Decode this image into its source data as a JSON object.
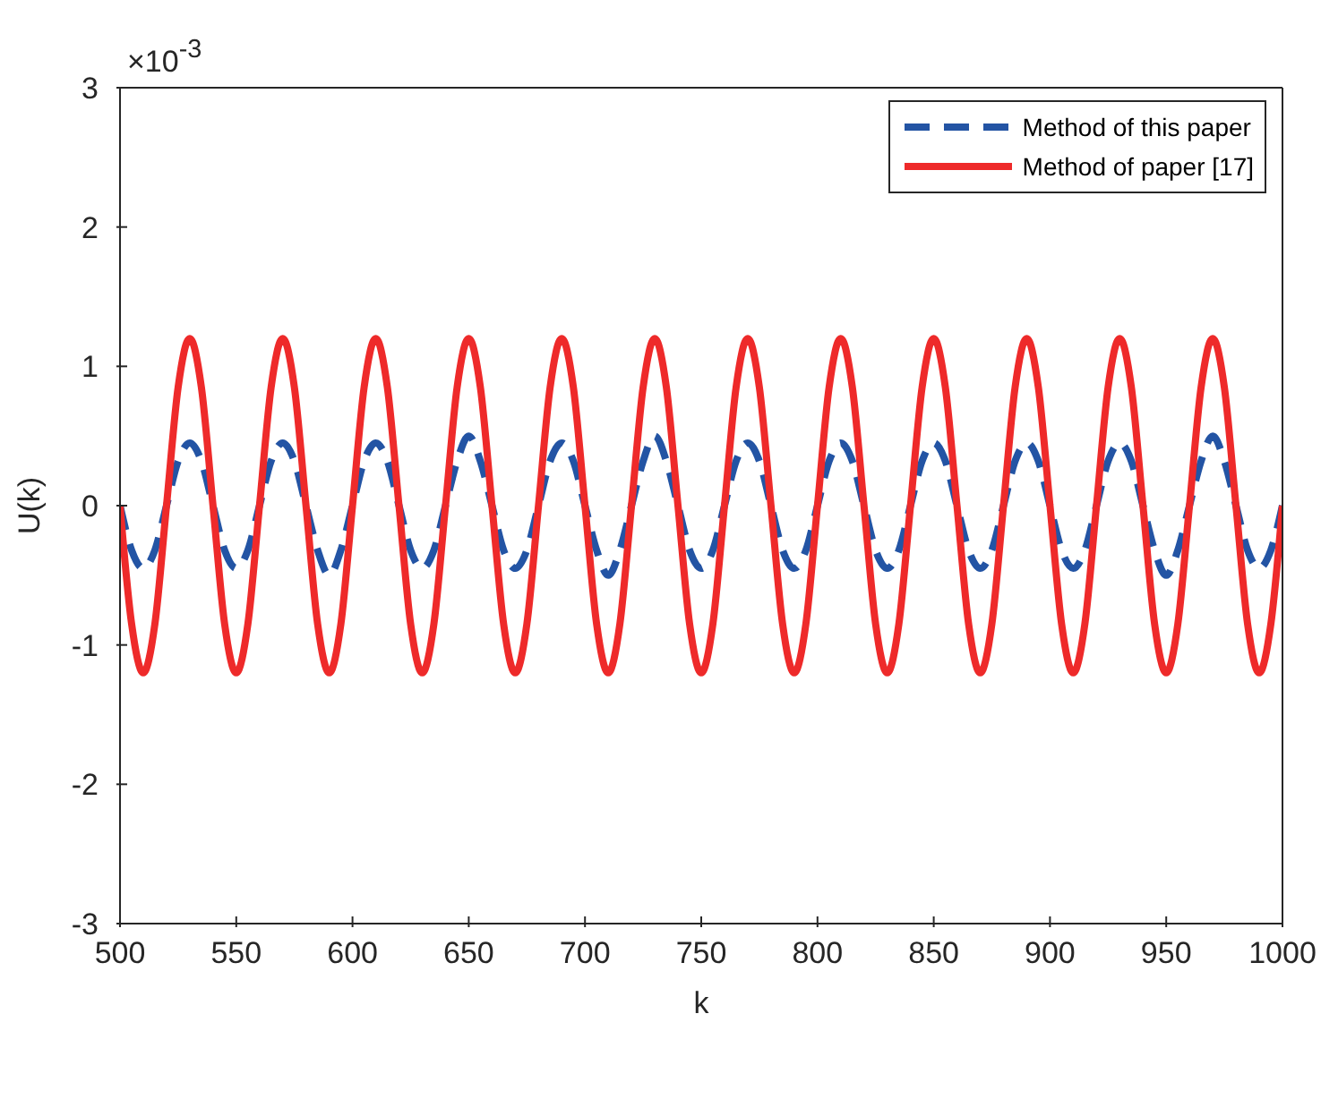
{
  "chart_data": {
    "type": "line",
    "xlabel": "k",
    "ylabel": "U(k)",
    "annotations": [
      "×10$^{-3}$"
    ],
    "x": [
      500,
      505,
      510,
      515,
      520,
      525,
      530,
      535,
      540,
      545,
      550,
      555,
      560,
      565,
      570,
      575,
      580,
      585,
      590,
      595,
      600,
      605,
      610,
      615,
      620,
      625,
      630,
      635,
      640,
      645,
      650,
      655,
      660,
      665,
      670,
      675,
      680,
      685,
      690,
      695,
      700,
      705,
      710,
      715,
      720,
      725,
      730,
      735,
      740,
      745,
      750,
      755,
      760,
      765,
      770,
      775,
      780,
      785,
      790,
      795,
      800,
      805,
      810,
      815,
      820,
      825,
      830,
      835,
      840,
      845,
      850,
      855,
      860,
      865,
      870,
      875,
      880,
      885,
      890,
      895,
      900,
      905,
      910,
      915,
      920,
      925,
      930,
      935,
      940,
      945,
      950,
      955,
      960,
      965,
      970,
      975,
      980,
      985,
      990,
      995,
      1000
    ],
    "series": [
      {
        "name": "Method of this paper",
        "color": "#2354a4",
        "line_style": "dashed",
        "values": [
          0,
          -0.32,
          -0.45,
          -0.32,
          0,
          0.32,
          0.45,
          0.32,
          0,
          -0.32,
          -0.45,
          -0.32,
          0,
          0.32,
          0.45,
          0.32,
          0,
          -0.32,
          -0.5,
          -0.32,
          0,
          0.32,
          0.45,
          0.32,
          0,
          -0.32,
          -0.45,
          -0.32,
          0,
          0.32,
          0.5,
          0.32,
          0,
          -0.32,
          -0.45,
          -0.32,
          0,
          0.32,
          0.45,
          0.32,
          0,
          -0.32,
          -0.5,
          -0.32,
          0,
          0.32,
          0.5,
          0.32,
          0,
          -0.32,
          -0.45,
          -0.32,
          0,
          0.32,
          0.45,
          0.32,
          0,
          -0.32,
          -0.45,
          -0.32,
          0,
          0.32,
          0.45,
          0.32,
          0,
          -0.32,
          -0.45,
          -0.32,
          0,
          0.32,
          0.45,
          0.32,
          0,
          -0.32,
          -0.45,
          -0.32,
          0,
          0.32,
          0.45,
          0.32,
          0,
          -0.32,
          -0.45,
          -0.32,
          0,
          0.32,
          0.45,
          0.32,
          0,
          -0.32,
          -0.5,
          -0.32,
          0,
          0.32,
          0.5,
          0.32,
          0,
          -0.32,
          -0.45,
          -0.32,
          0
        ]
      },
      {
        "name": "Method of paper [17]",
        "color": "#ee2a2a",
        "line_style": "solid",
        "values": [
          0,
          -0.85,
          -1.2,
          -0.85,
          0,
          0.85,
          1.2,
          0.85,
          0,
          -0.85,
          -1.2,
          -0.85,
          0,
          0.85,
          1.2,
          0.85,
          0,
          -0.85,
          -1.2,
          -0.85,
          0,
          0.85,
          1.2,
          0.85,
          0,
          -0.85,
          -1.2,
          -0.85,
          0,
          0.85,
          1.2,
          0.85,
          0,
          -0.85,
          -1.2,
          -0.85,
          0,
          0.85,
          1.2,
          0.85,
          0,
          -0.85,
          -1.2,
          -0.85,
          0,
          0.85,
          1.2,
          0.85,
          0,
          -0.85,
          -1.2,
          -0.85,
          0,
          0.85,
          1.2,
          0.85,
          0,
          -0.85,
          -1.2,
          -0.85,
          0,
          0.85,
          1.2,
          0.85,
          0,
          -0.85,
          -1.2,
          -0.85,
          0,
          0.85,
          1.2,
          0.85,
          0,
          -0.85,
          -1.2,
          -0.85,
          0,
          0.85,
          1.2,
          0.85,
          0,
          -0.85,
          -1.2,
          -0.85,
          0,
          0.85,
          1.2,
          0.85,
          0,
          -0.85,
          -1.2,
          -0.85,
          0,
          0.85,
          1.2,
          0.85,
          0,
          -0.85,
          -1.2,
          -0.85,
          0
        ]
      }
    ],
    "xlim": [
      500,
      1000
    ],
    "xticks": [
      500,
      550,
      600,
      650,
      700,
      750,
      800,
      850,
      900,
      950,
      1000
    ],
    "ylim": [
      -3,
      3
    ],
    "yticks": [
      -3,
      -2,
      -1,
      0,
      1,
      2,
      3
    ],
    "grid": false,
    "legend": "top right"
  }
}
